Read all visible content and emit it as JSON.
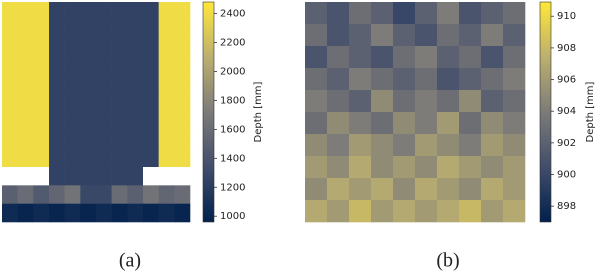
{
  "chart_data": [
    {
      "type": "heatmap",
      "caption": "(a)",
      "colorbar_label": "Depth [mm]",
      "clim": [
        960,
        2480
      ],
      "cticks": [
        1000,
        1200,
        1400,
        1600,
        1800,
        2000,
        2200,
        2400
      ],
      "colormap": [
        "#00204c",
        "#414d6b",
        "#7c7b78",
        "#bcaf6f",
        "#fee838"
      ],
      "values": [
        [
          2400,
          2400,
          2400,
          1250,
          1250,
          1250,
          1250,
          1250,
          1250,
          1250,
          2400,
          2400
        ],
        [
          2400,
          2400,
          2400,
          1250,
          1250,
          1250,
          1250,
          1250,
          1250,
          1250,
          2400,
          2400
        ],
        [
          2400,
          2400,
          2400,
          1250,
          1250,
          1250,
          1250,
          1250,
          1250,
          1250,
          2400,
          2400
        ],
        [
          2400,
          2400,
          2400,
          1250,
          1250,
          1250,
          1250,
          1250,
          1250,
          1250,
          2400,
          2400
        ],
        [
          2400,
          2400,
          2400,
          1250,
          1250,
          1250,
          1250,
          1250,
          1250,
          1250,
          2400,
          2400
        ],
        [
          2400,
          2400,
          2400,
          1250,
          1250,
          1250,
          1250,
          1250,
          1250,
          1250,
          2400,
          2400
        ],
        [
          2400,
          2400,
          2400,
          1250,
          1250,
          1250,
          1250,
          1250,
          1250,
          1250,
          2400,
          2400
        ],
        [
          2400,
          2400,
          2400,
          1250,
          1250,
          1250,
          1250,
          1250,
          1250,
          1250,
          2400,
          2400
        ],
        [
          2400,
          2400,
          2400,
          1250,
          1250,
          1250,
          1250,
          1250,
          1250,
          1250,
          2400,
          2400
        ],
        [
          null,
          null,
          null,
          1250,
          1250,
          1250,
          1250,
          1250,
          1250,
          null,
          null,
          null
        ],
        [
          1500,
          1600,
          1450,
          1550,
          1650,
          1300,
          1300,
          1600,
          1500,
          1650,
          1550,
          1600
        ],
        [
          1050,
          1000,
          1050,
          1000,
          1050,
          1000,
          1050,
          1000,
          1050,
          1000,
          1050,
          1000
        ]
      ]
    },
    {
      "type": "heatmap",
      "caption": "(b)",
      "colorbar_label": "Depth [mm]",
      "clim": [
        897,
        910.9
      ],
      "cticks": [
        898,
        900,
        902,
        904,
        906,
        908,
        910
      ],
      "colormap": [
        "#00204c",
        "#414d6b",
        "#7c7b78",
        "#bcaf6f",
        "#fee838"
      ],
      "values": [
        [
          902,
          901,
          903,
          902,
          900,
          902,
          904,
          901,
          902,
          903
        ],
        [
          903,
          901,
          902,
          904,
          902,
          901,
          903,
          902,
          904,
          902
        ],
        [
          901,
          903,
          902,
          901,
          903,
          904,
          902,
          903,
          901,
          903
        ],
        [
          903,
          902,
          904,
          903,
          902,
          903,
          901,
          902,
          903,
          904
        ],
        [
          904,
          903,
          902,
          905,
          903,
          904,
          903,
          905,
          902,
          903
        ],
        [
          903,
          905,
          904,
          903,
          905,
          904,
          906,
          903,
          905,
          904
        ],
        [
          905,
          904,
          906,
          905,
          904,
          906,
          905,
          904,
          906,
          905
        ],
        [
          906,
          905,
          907,
          905,
          906,
          905,
          907,
          906,
          905,
          906
        ],
        [
          905,
          907,
          906,
          907,
          905,
          907,
          906,
          905,
          907,
          906
        ],
        [
          907,
          906,
          908,
          906,
          907,
          906,
          907,
          908,
          906,
          907
        ]
      ]
    }
  ]
}
